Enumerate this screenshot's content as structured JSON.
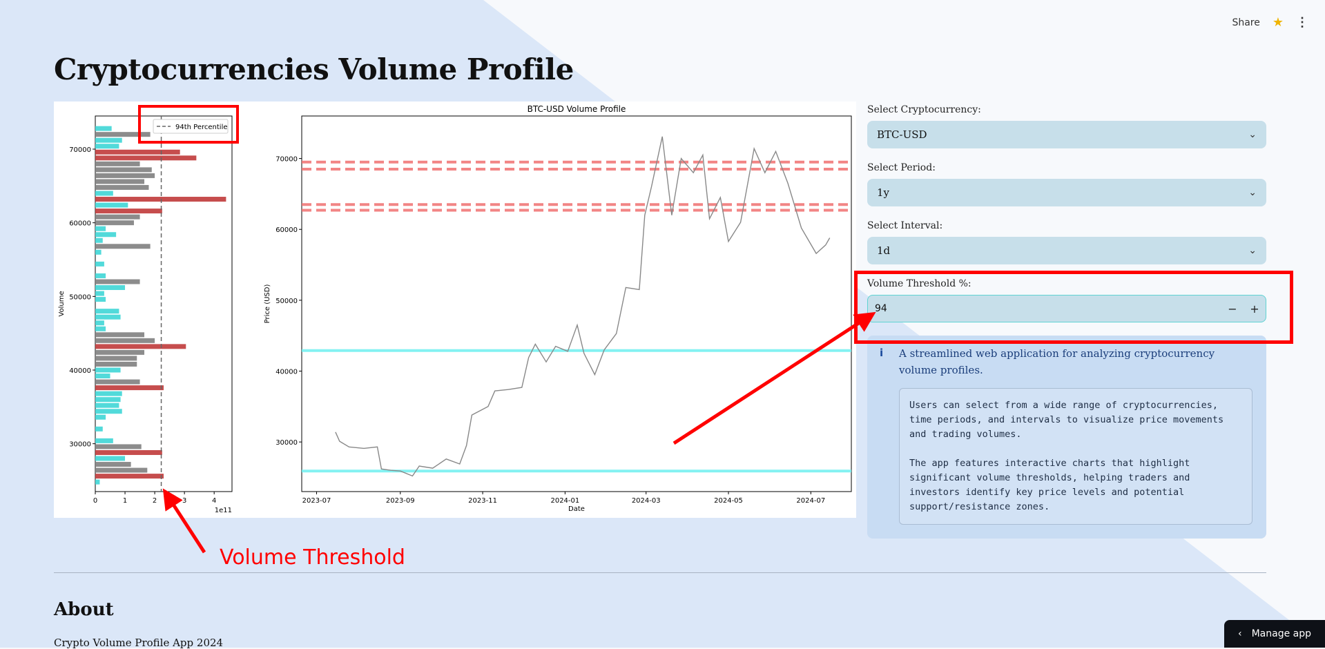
{
  "header": {
    "share_label": "Share",
    "star_icon": "star-icon",
    "menu_icon": "kebab-menu-icon"
  },
  "page_title": "Cryptocurrencies Volume Profile",
  "controls": {
    "crypto_label": "Select Cryptocurrency:",
    "crypto_value": "BTC-USD",
    "period_label": "Select Period:",
    "period_value": "1y",
    "interval_label": "Select Interval:",
    "interval_value": "1d",
    "threshold_label": "Volume Threshold %:",
    "threshold_value": "94",
    "minus": "−",
    "plus": "+"
  },
  "info": {
    "text": "A streamlined web application for analyzing cryptocurrency volume profiles.",
    "detail": "Users can select from a wide range of cryptocurrencies, time periods, and intervals to visualize price movements and trading volumes.\n\nThe app features interactive charts that highlight significant volume thresholds, helping traders and investors identify key price levels and potential support/resistance zones."
  },
  "annotation": {
    "label": "Volume Threshold"
  },
  "about": {
    "heading": "About",
    "footer": "Crypto Volume Profile App 2024"
  },
  "manage_app": "Manage app",
  "chart_data": [
    {
      "type": "bar",
      "orientation": "horizontal",
      "ylabel": "Volume",
      "xlabel_offset": "1e11",
      "xticks": [
        "0",
        "1",
        "2",
        "3",
        "4"
      ],
      "yticks": [
        "30000",
        "40000",
        "50000",
        "60000",
        "70000"
      ],
      "xlim": [
        0,
        4.6
      ],
      "ylim": [
        23500,
        74500
      ],
      "legend": {
        "label": "94th Percentile",
        "placement": "top-right"
      },
      "threshold": 2.22,
      "colors": {
        "low": "#3fd6d6",
        "mid": "#808080",
        "high": "#c03a3a"
      },
      "bars": [
        {
          "p": 72800,
          "v": 0.55
        },
        {
          "p": 72000,
          "v": 1.85
        },
        {
          "p": 71200,
          "v": 0.9
        },
        {
          "p": 70400,
          "v": 0.8
        },
        {
          "p": 69600,
          "v": 2.85
        },
        {
          "p": 68800,
          "v": 3.4
        },
        {
          "p": 68000,
          "v": 1.5
        },
        {
          "p": 67200,
          "v": 1.9
        },
        {
          "p": 66400,
          "v": 2.0
        },
        {
          "p": 65600,
          "v": 1.65
        },
        {
          "p": 64800,
          "v": 1.8
        },
        {
          "p": 64000,
          "v": 0.6
        },
        {
          "p": 63200,
          "v": 4.4
        },
        {
          "p": 62400,
          "v": 1.1
        },
        {
          "p": 61600,
          "v": 2.25
        },
        {
          "p": 60800,
          "v": 1.5
        },
        {
          "p": 60000,
          "v": 1.3
        },
        {
          "p": 59200,
          "v": 0.35
        },
        {
          "p": 58400,
          "v": 0.7
        },
        {
          "p": 57600,
          "v": 0.25
        },
        {
          "p": 56800,
          "v": 1.85
        },
        {
          "p": 56000,
          "v": 0.2
        },
        {
          "p": 54400,
          "v": 0.3
        },
        {
          "p": 52800,
          "v": 0.35
        },
        {
          "p": 52000,
          "v": 1.5
        },
        {
          "p": 51200,
          "v": 1.0
        },
        {
          "p": 50400,
          "v": 0.3
        },
        {
          "p": 49600,
          "v": 0.35
        },
        {
          "p": 48000,
          "v": 0.8
        },
        {
          "p": 47200,
          "v": 0.85
        },
        {
          "p": 46400,
          "v": 0.3
        },
        {
          "p": 45600,
          "v": 0.35
        },
        {
          "p": 44800,
          "v": 1.65
        },
        {
          "p": 44000,
          "v": 2.0
        },
        {
          "p": 43200,
          "v": 3.05
        },
        {
          "p": 42400,
          "v": 1.65
        },
        {
          "p": 41600,
          "v": 1.4
        },
        {
          "p": 40800,
          "v": 1.4
        },
        {
          "p": 40000,
          "v": 0.85
        },
        {
          "p": 39200,
          "v": 0.5
        },
        {
          "p": 38400,
          "v": 1.5
        },
        {
          "p": 37600,
          "v": 2.3
        },
        {
          "p": 36800,
          "v": 0.9
        },
        {
          "p": 36000,
          "v": 0.85
        },
        {
          "p": 35200,
          "v": 0.8
        },
        {
          "p": 34400,
          "v": 0.9
        },
        {
          "p": 33600,
          "v": 0.35
        },
        {
          "p": 32000,
          "v": 0.25
        },
        {
          "p": 30400,
          "v": 0.6
        },
        {
          "p": 29600,
          "v": 1.55
        },
        {
          "p": 28800,
          "v": 2.25
        },
        {
          "p": 28000,
          "v": 1.0
        },
        {
          "p": 27200,
          "v": 1.2
        },
        {
          "p": 26400,
          "v": 1.75
        },
        {
          "p": 25600,
          "v": 2.3
        },
        {
          "p": 24800,
          "v": 0.15
        }
      ]
    },
    {
      "type": "line",
      "title": "BTC-USD Volume Profile",
      "xlabel": "Date",
      "ylabel": "Price (USD)",
      "xticks": [
        "2023-07",
        "2023-09",
        "2023-11",
        "2024-01",
        "2024-03",
        "2024-05",
        "2024-07"
      ],
      "yticks": [
        "30000",
        "40000",
        "50000",
        "60000",
        "70000"
      ],
      "xlim": [
        "2023-06-20",
        "2024-07-31"
      ],
      "ylim": [
        23000,
        76000
      ],
      "line_color": "#888888",
      "hlines": [
        {
          "y": 69500,
          "color": "#f07070",
          "style": "dashed"
        },
        {
          "y": 68500,
          "color": "#f07070",
          "style": "dashed"
        },
        {
          "y": 63500,
          "color": "#f07070",
          "style": "dashed"
        },
        {
          "y": 62700,
          "color": "#f07070",
          "style": "dashed"
        },
        {
          "y": 42900,
          "color": "#6ff0f0",
          "style": "solid"
        },
        {
          "y": 25900,
          "color": "#6ff0f0",
          "style": "solid"
        }
      ],
      "series": [
        {
          "values": [
            [
              "2023-07-15",
              31400
            ],
            [
              "2023-07-18",
              30100
            ],
            [
              "2023-07-25",
              29300
            ],
            [
              "2023-08-05",
              29100
            ],
            [
              "2023-08-15",
              29300
            ],
            [
              "2023-08-18",
              26200
            ],
            [
              "2023-08-25",
              26000
            ],
            [
              "2023-09-01",
              25900
            ],
            [
              "2023-09-10",
              25200
            ],
            [
              "2023-09-15",
              26600
            ],
            [
              "2023-09-25",
              26300
            ],
            [
              "2023-10-05",
              27600
            ],
            [
              "2023-10-15",
              26900
            ],
            [
              "2023-10-20",
              29500
            ],
            [
              "2023-10-24",
              33800
            ],
            [
              "2023-11-05",
              35000
            ],
            [
              "2023-11-10",
              37200
            ],
            [
              "2023-11-20",
              37400
            ],
            [
              "2023-11-30",
              37700
            ],
            [
              "2023-12-05",
              41900
            ],
            [
              "2023-12-10",
              43800
            ],
            [
              "2023-12-18",
              41300
            ],
            [
              "2023-12-25",
              43500
            ],
            [
              "2024-01-03",
              42800
            ],
            [
              "2024-01-10",
              46500
            ],
            [
              "2024-01-15",
              42500
            ],
            [
              "2024-01-23",
              39500
            ],
            [
              "2024-01-30",
              43000
            ],
            [
              "2024-02-08",
              45300
            ],
            [
              "2024-02-15",
              51800
            ],
            [
              "2024-02-25",
              51500
            ],
            [
              "2024-02-29",
              62000
            ],
            [
              "2024-03-05",
              66000
            ],
            [
              "2024-03-13",
              73100
            ],
            [
              "2024-03-20",
              62000
            ],
            [
              "2024-03-27",
              70000
            ],
            [
              "2024-04-05",
              68000
            ],
            [
              "2024-04-12",
              70500
            ],
            [
              "2024-04-17",
              61500
            ],
            [
              "2024-04-25",
              64500
            ],
            [
              "2024-05-01",
              58300
            ],
            [
              "2024-05-10",
              61000
            ],
            [
              "2024-05-20",
              71400
            ],
            [
              "2024-05-28",
              68000
            ],
            [
              "2024-06-05",
              71000
            ],
            [
              "2024-06-14",
              66500
            ],
            [
              "2024-06-24",
              60200
            ],
            [
              "2024-07-05",
              56600
            ],
            [
              "2024-07-12",
              57800
            ],
            [
              "2024-07-15",
              58800
            ]
          ]
        }
      ]
    }
  ]
}
